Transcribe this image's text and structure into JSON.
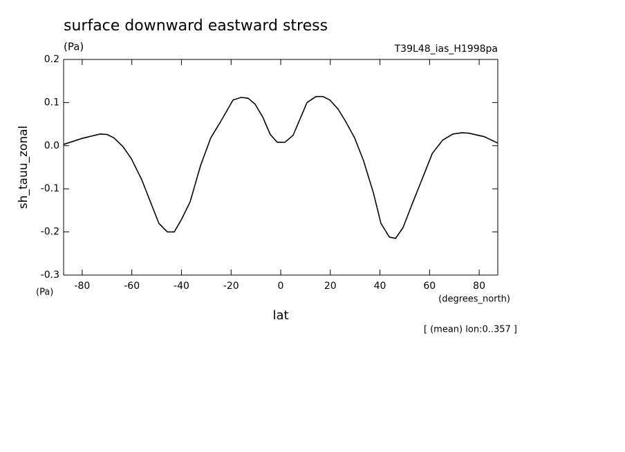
{
  "chart_data": {
    "type": "line",
    "title": "surface downward eastward stress",
    "unit_label": "(Pa)",
    "experiment": "T39L48_ias_H1998pa",
    "ylabel": "sh_tauu_zonal",
    "y_unit": "(Pa)",
    "x_unit": "(degrees_north)",
    "xlabel": "lat",
    "note": "[ (mean) lon:0..357 ]",
    "xlim": [
      -87.5,
      87.5
    ],
    "ylim": [
      -0.3,
      0.2
    ],
    "xticks": [
      -80,
      -60,
      -40,
      -20,
      0,
      20,
      40,
      60,
      80
    ],
    "yticks": [
      -0.3,
      -0.2,
      -0.1,
      {
        "value": 0,
        "label": "0.0"
      },
      0.1,
      0.2
    ],
    "series": [
      {
        "name": "sh_tauu_zonal",
        "color": "#000000",
        "x": [
          -87.5,
          -80,
          -72.8,
          -70,
          -67.2,
          -63.6,
          -60.2,
          -56,
          -49.1,
          -45.7,
          -42.9,
          -39.9,
          -36.5,
          -32.3,
          -28.2,
          -24.5,
          -19.2,
          -15.9,
          -13.1,
          -10.3,
          -7.2,
          -4.2,
          -1.4,
          1.7,
          5,
          10.6,
          14.2,
          17,
          19.8,
          23.1,
          26.2,
          29.8,
          33.4,
          37.4,
          40.4,
          43.8,
          46.3,
          49.3,
          53,
          56.9,
          61.1,
          65.3,
          69.4,
          73,
          75.8,
          82,
          87.5
        ],
        "values": [
          0.003,
          0.017,
          0.027,
          0.026,
          0.018,
          -0.002,
          -0.03,
          -0.079,
          -0.18,
          -0.2,
          -0.2,
          -0.17,
          -0.13,
          -0.046,
          0.018,
          0.053,
          0.106,
          0.112,
          0.11,
          0.096,
          0.066,
          0.026,
          0.008,
          0.008,
          0.024,
          0.1,
          0.114,
          0.114,
          0.106,
          0.085,
          0.056,
          0.018,
          -0.035,
          -0.11,
          -0.18,
          -0.212,
          -0.215,
          -0.19,
          -0.135,
          -0.079,
          -0.018,
          0.013,
          0.027,
          0.03,
          0.029,
          0.021,
          0.006
        ]
      }
    ]
  }
}
